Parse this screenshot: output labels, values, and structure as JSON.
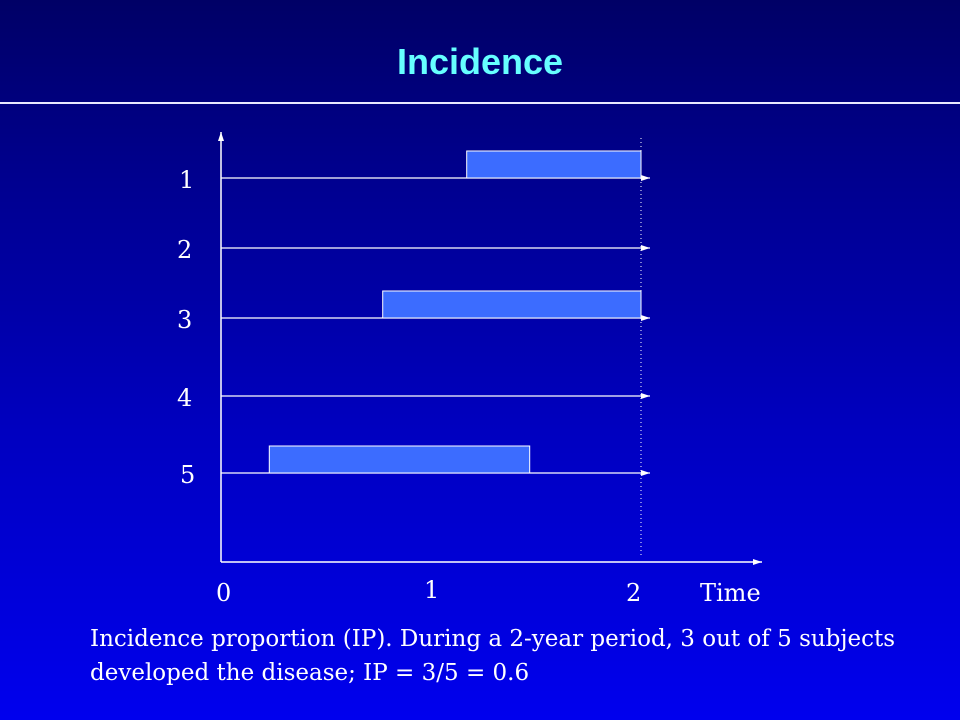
{
  "title": "Incidence",
  "diagram": {
    "subjects": [
      {
        "label": "1",
        "disease_start": 1.17,
        "disease_end": 2.0
      },
      {
        "label": "2",
        "disease_start": null,
        "disease_end": null
      },
      {
        "label": "3",
        "disease_start": 0.77,
        "disease_end": 2.0
      },
      {
        "label": "4",
        "disease_start": null,
        "disease_end": null
      },
      {
        "label": "5",
        "disease_start": 0.23,
        "disease_end": 1.47
      }
    ],
    "x_ticks": [
      "0",
      "1",
      "2"
    ],
    "x_axis_label": "Time",
    "follow_up_end": 2,
    "colors": {
      "axis": "#ffffff",
      "bar_fill": "#3c6cff",
      "bar_stroke": "#ffffff"
    }
  },
  "caption": {
    "line1": "Incidence proportion (IP). During a 2-year period, 3 out of 5 subjects",
    "line2": "developed the disease; IP = 3/5 = 0.6"
  }
}
